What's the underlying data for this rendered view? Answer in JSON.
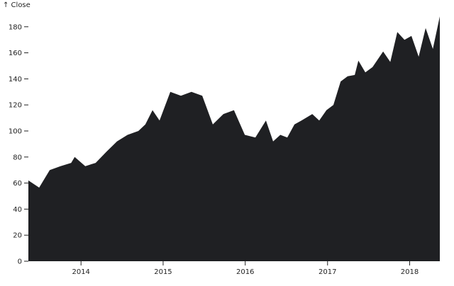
{
  "chart_data": {
    "type": "area",
    "title": "",
    "xlabel": "",
    "ylabel": "↑ Close",
    "ylim": [
      0,
      190
    ],
    "xlim": [
      "2013-05-12",
      "2018-05-15"
    ],
    "grid": false,
    "fill_color": "#1f2023",
    "y_ticks": [
      "0",
      "20",
      "40",
      "60",
      "80",
      "100",
      "120",
      "140",
      "160",
      "180"
    ],
    "x_ticks": [
      "2014",
      "2015",
      "2016",
      "2017",
      "2018"
    ],
    "points": [
      [
        "2013-05-12",
        62
      ],
      [
        "2013-06-29",
        56.5
      ],
      [
        "2013-08-15",
        70
      ],
      [
        "2013-10-02",
        73
      ],
      [
        "2013-11-18",
        75.5
      ],
      [
        "2013-12-04",
        80
      ],
      [
        "2014-01-20",
        73
      ],
      [
        "2014-03-07",
        75.5
      ],
      [
        "2014-04-24",
        84
      ],
      [
        "2014-06-10",
        92
      ],
      [
        "2014-07-27",
        97
      ],
      [
        "2014-09-13",
        100
      ],
      [
        "2014-10-14",
        105
      ],
      [
        "2014-11-15",
        116
      ],
      [
        "2014-12-16",
        108
      ],
      [
        "2015-02-02",
        130
      ],
      [
        "2015-03-21",
        127
      ],
      [
        "2015-05-07",
        130
      ],
      [
        "2015-06-24",
        127
      ],
      [
        "2015-08-10",
        105
      ],
      [
        "2015-09-26",
        113
      ],
      [
        "2015-11-12",
        116
      ],
      [
        "2015-12-30",
        97
      ],
      [
        "2016-02-15",
        95
      ],
      [
        "2016-04-02",
        108
      ],
      [
        "2016-05-04",
        92
      ],
      [
        "2016-06-05",
        97
      ],
      [
        "2016-07-06",
        95
      ],
      [
        "2016-08-07",
        105
      ],
      [
        "2016-09-07",
        108
      ],
      [
        "2016-10-25",
        113
      ],
      [
        "2016-11-25",
        108
      ],
      [
        "2016-12-27",
        116
      ],
      [
        "2017-01-27",
        120
      ],
      [
        "2017-02-28",
        138
      ],
      [
        "2017-03-31",
        142
      ],
      [
        "2017-05-02",
        143
      ],
      [
        "2017-05-18",
        154
      ],
      [
        "2017-06-18",
        145
      ],
      [
        "2017-07-20",
        149
      ],
      [
        "2017-09-05",
        161
      ],
      [
        "2017-10-07",
        153
      ],
      [
        "2017-11-07",
        176
      ],
      [
        "2017-12-09",
        170
      ],
      [
        "2018-01-09",
        173
      ],
      [
        "2018-02-10",
        157
      ],
      [
        "2018-03-13",
        179
      ],
      [
        "2018-04-14",
        163
      ],
      [
        "2018-05-15",
        188
      ]
    ]
  }
}
